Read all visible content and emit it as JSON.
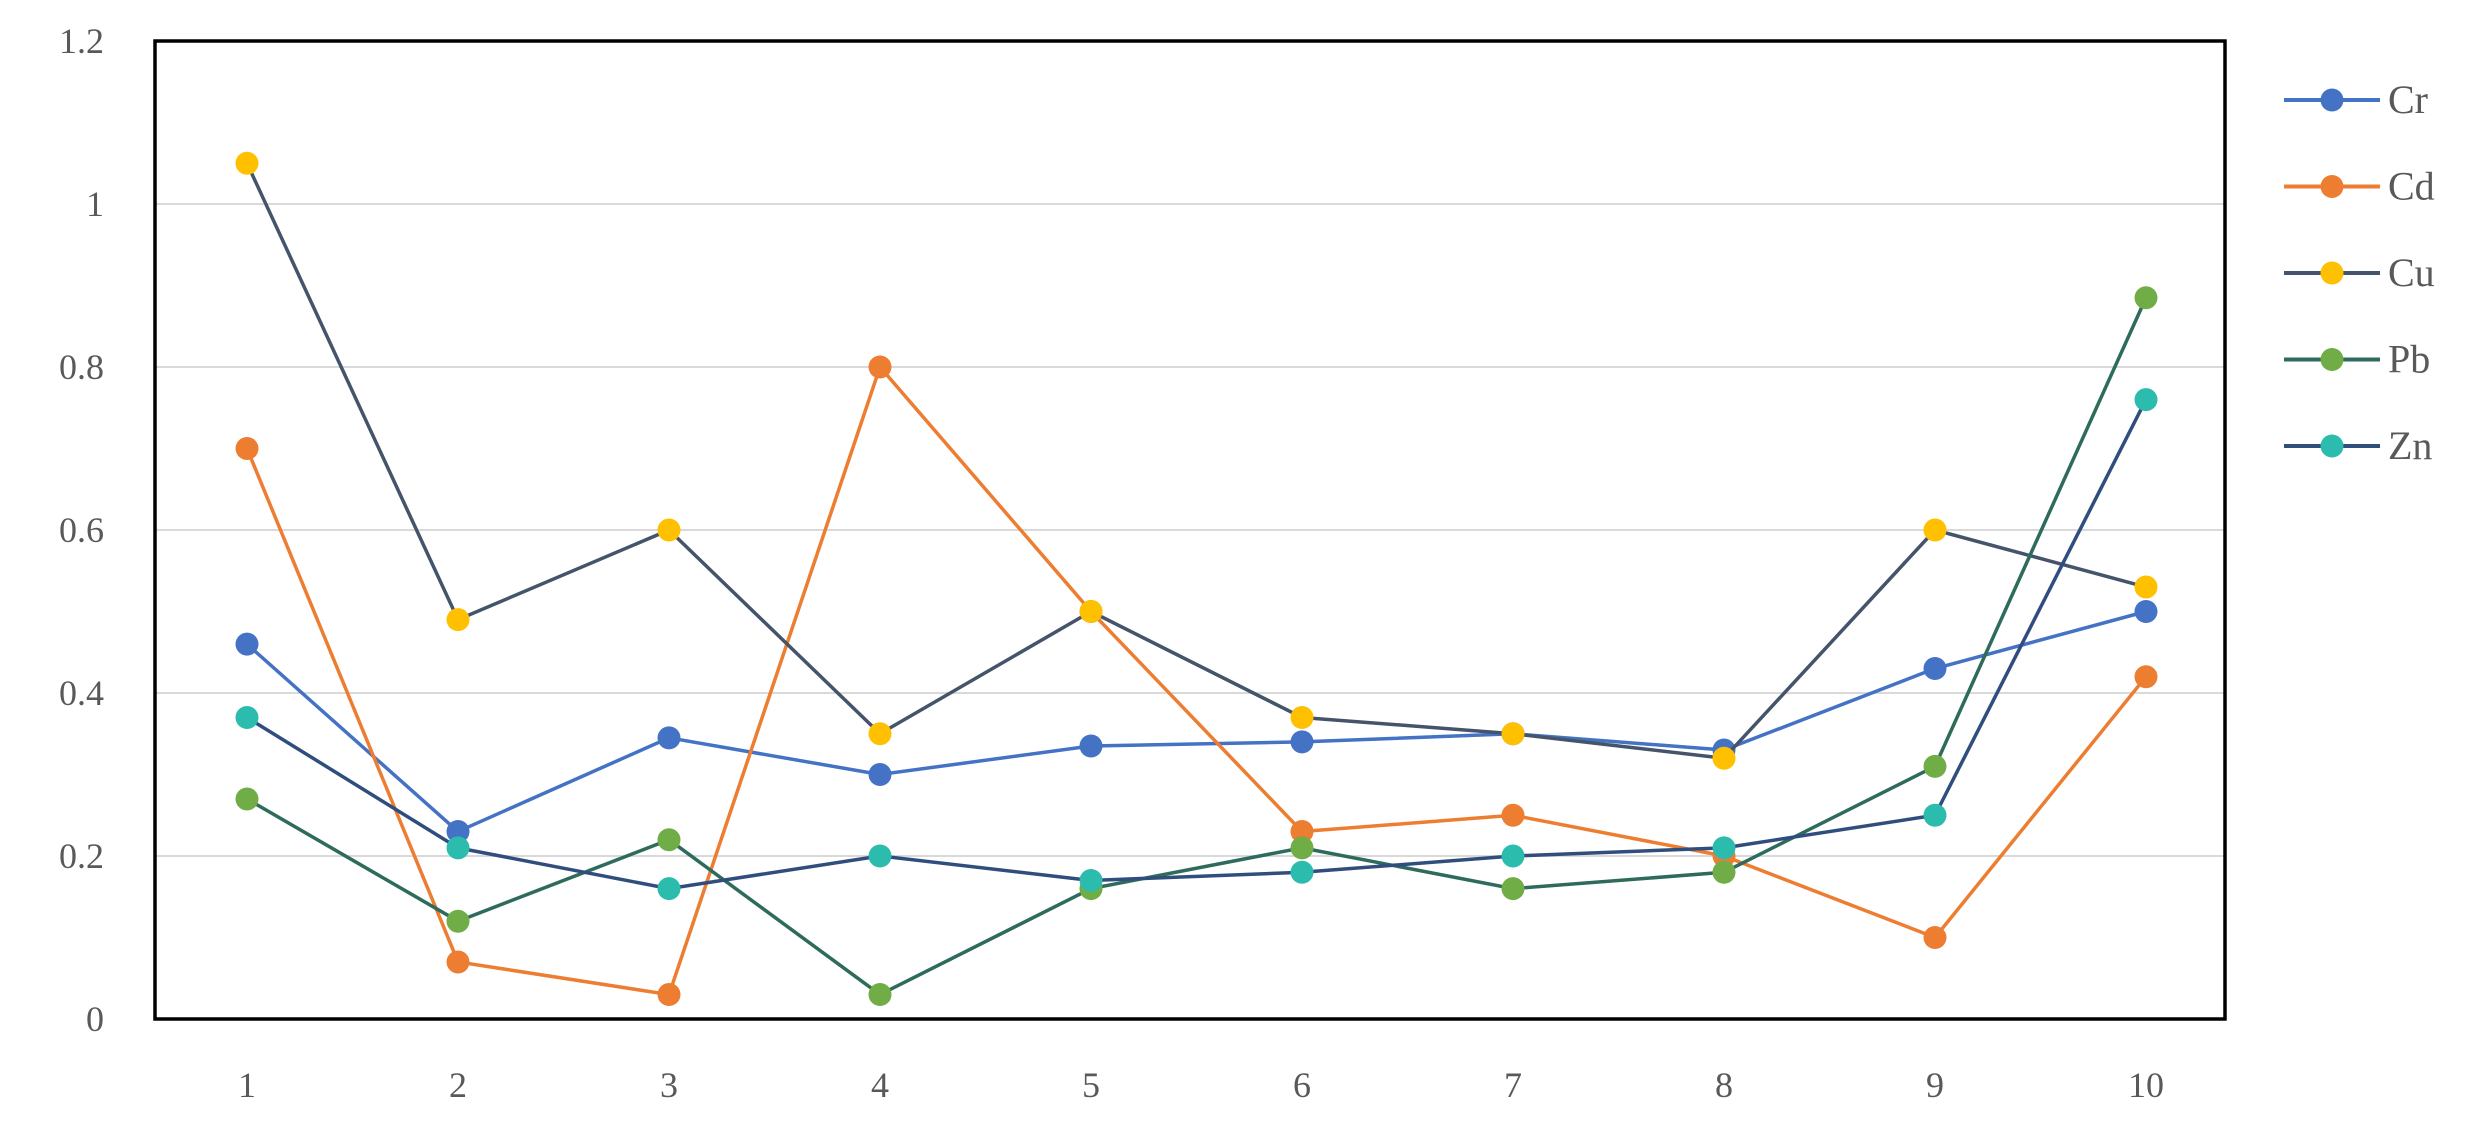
{
  "chart_data": {
    "type": "line",
    "title": "",
    "xlabel": "",
    "ylabel": "",
    "categories": [
      "1",
      "2",
      "3",
      "4",
      "5",
      "6",
      "7",
      "8",
      "9",
      "10"
    ],
    "x_values": [
      1,
      2,
      3,
      4,
      5,
      6,
      7,
      8,
      9,
      10
    ],
    "ylim": [
      0,
      1.2
    ],
    "ytick_labels": [
      "0",
      "0.2",
      "0.4",
      "0.6",
      "0.8",
      "1",
      "1.2"
    ],
    "ytick_values": [
      0,
      0.2,
      0.4,
      0.6,
      0.8,
      1.0,
      1.2
    ],
    "grid": true,
    "gridline_color": "#d9d9d9",
    "plot_border_color": "#000000",
    "axis_label_color": "#595959",
    "legend_position": "right",
    "legend_entries": [
      "Cr",
      "Cd",
      "Cu",
      "Pb",
      "Zn"
    ],
    "series": [
      {
        "name": "Cr",
        "line_color": "#4472c4",
        "marker_color": "#4472c4",
        "values": [
          0.46,
          0.23,
          0.345,
          0.3,
          0.335,
          0.34,
          0.35,
          0.33,
          0.43,
          0.5
        ]
      },
      {
        "name": "Cd",
        "line_color": "#ed7d31",
        "marker_color": "#ed7d31",
        "values": [
          0.7,
          0.07,
          0.03,
          0.8,
          0.5,
          0.23,
          0.25,
          0.2,
          0.1,
          0.42
        ]
      },
      {
        "name": "Cu",
        "line_color": "#44546a",
        "marker_color": "#ffc000",
        "values": [
          1.05,
          0.49,
          0.6,
          0.35,
          0.5,
          0.37,
          0.35,
          0.32,
          0.6,
          0.53
        ]
      },
      {
        "name": "Pb",
        "line_color": "#2e6b5c",
        "marker_color": "#70ad47",
        "values": [
          0.27,
          0.12,
          0.22,
          0.03,
          0.16,
          0.21,
          0.16,
          0.18,
          0.31,
          0.885
        ]
      },
      {
        "name": "Zn",
        "line_color": "#2f4e7e",
        "marker_color": "#2cbcad",
        "values": [
          0.37,
          0.21,
          0.16,
          0.2,
          0.17,
          0.18,
          0.2,
          0.21,
          0.25,
          0.76
        ]
      }
    ]
  }
}
